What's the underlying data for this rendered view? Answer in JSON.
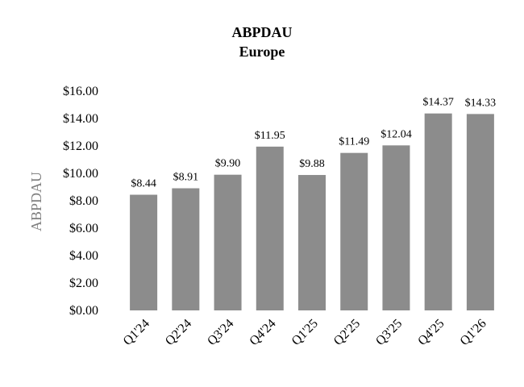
{
  "chart_data": {
    "type": "bar",
    "title": "ABPDAU",
    "subtitle": "Europe",
    "ylabel": "ABPDAU",
    "xlabel": "",
    "categories": [
      "Q1'24",
      "Q2'24",
      "Q3'24",
      "Q4'24",
      "Q1'25",
      "Q2'25",
      "Q3'25",
      "Q4'25",
      "Q1'26"
    ],
    "values": [
      8.44,
      8.91,
      9.9,
      11.95,
      9.88,
      11.49,
      12.04,
      14.37,
      14.33
    ],
    "data_labels": [
      "$8.44",
      "$8.91",
      "$9.90",
      "$11.95",
      "$9.88",
      "$11.49",
      "$12.04",
      "$14.37",
      "$14.33"
    ],
    "yticks": [
      0,
      2,
      4,
      6,
      8,
      10,
      12,
      14,
      16
    ],
    "ytick_labels": [
      "$0.00",
      "$2.00",
      "$4.00",
      "$6.00",
      "$8.00",
      "$10.00",
      "$12.00",
      "$14.00",
      "$16.00"
    ],
    "ylim": [
      0,
      16
    ],
    "grid": false,
    "legend": "none",
    "bar_color": "#8c8c8c"
  }
}
